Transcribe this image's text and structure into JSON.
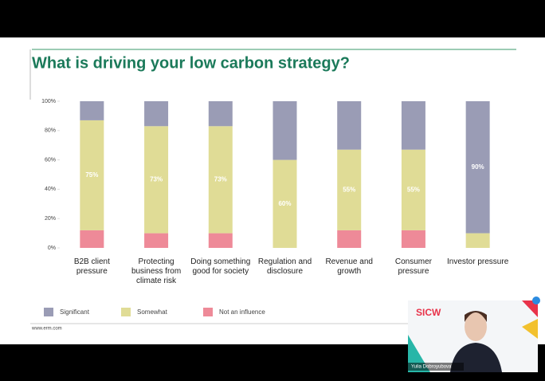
{
  "chart_data": {
    "type": "stacked_bar",
    "title": "What is driving your low carbon strategy?",
    "categories": [
      "B2B client pressure",
      "Protecting business from climate risk",
      "Doing something good for society",
      "Regulation and disclosure",
      "Revenue and growth",
      "Consumer pressure",
      "Investor pressure"
    ],
    "series": [
      {
        "name": "Not an influence",
        "color": "#ee8a98",
        "values": [
          12,
          10,
          10,
          0,
          12,
          12,
          0
        ]
      },
      {
        "name": "Somewhat",
        "color": "#e0dc96",
        "values": [
          75,
          73,
          73,
          60,
          55,
          55,
          10
        ],
        "value_labels": [
          "75%",
          "73%",
          "73%",
          "60%",
          "55%",
          "55%",
          null
        ]
      },
      {
        "name": "Significant",
        "color": "#9a9cb5",
        "values": [
          13,
          17,
          17,
          40,
          33,
          33,
          90
        ],
        "value_labels": [
          null,
          null,
          null,
          null,
          null,
          null,
          "90%"
        ]
      }
    ],
    "legend_order": [
      "Significant",
      "Somewhat",
      "Not an influence"
    ],
    "ylim": [
      0,
      100
    ],
    "yticks": [
      {
        "value": 0,
        "label": "0%"
      },
      {
        "value": 20,
        "label": "20%"
      },
      {
        "value": 40,
        "label": "40%"
      },
      {
        "value": 60,
        "label": "60%"
      },
      {
        "value": 80,
        "label": "80%"
      },
      {
        "value": 100,
        "label": "100%"
      }
    ],
    "footer": "www.erm.com"
  },
  "webcam": {
    "logo": "SICW",
    "name": "Yulia Dobroyubova"
  }
}
